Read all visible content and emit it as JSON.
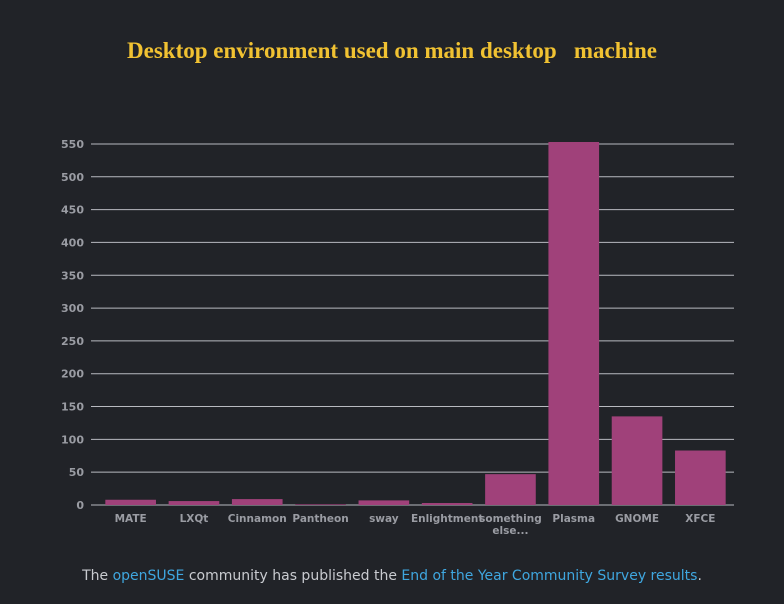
{
  "chart_data": {
    "type": "bar",
    "title": "Desktop environment used on main desktop   machine",
    "categories": [
      "MATE",
      "LXQt",
      "Cinnamon",
      "Pantheon",
      "sway",
      "Enlightment",
      "something else...",
      "Plasma",
      "GNOME",
      "XFCE"
    ],
    "category_lines": [
      [
        "MATE"
      ],
      [
        "LXQt"
      ],
      [
        "Cinnamon"
      ],
      [
        "Pantheon"
      ],
      [
        "sway"
      ],
      [
        "Enlightment"
      ],
      [
        "something",
        "else..."
      ],
      [
        "Plasma"
      ],
      [
        "GNOME"
      ],
      [
        "XFCE"
      ]
    ],
    "values": [
      8,
      6,
      9,
      1,
      7,
      3,
      47,
      553,
      135,
      83
    ],
    "yticks": [
      0,
      50,
      100,
      150,
      200,
      250,
      300,
      350,
      400,
      450,
      500,
      550
    ],
    "ylim": [
      0,
      553
    ],
    "grid": true,
    "legend": false,
    "bar_color": "#a0417a",
    "grid_color": "#b8bac0",
    "xlabel": "",
    "ylabel": ""
  },
  "footer": {
    "prefix": "The ",
    "link1": "openSUSE",
    "middle": " community has published the ",
    "link2": "End of the Year Community Survey results",
    "suffix": "."
  }
}
